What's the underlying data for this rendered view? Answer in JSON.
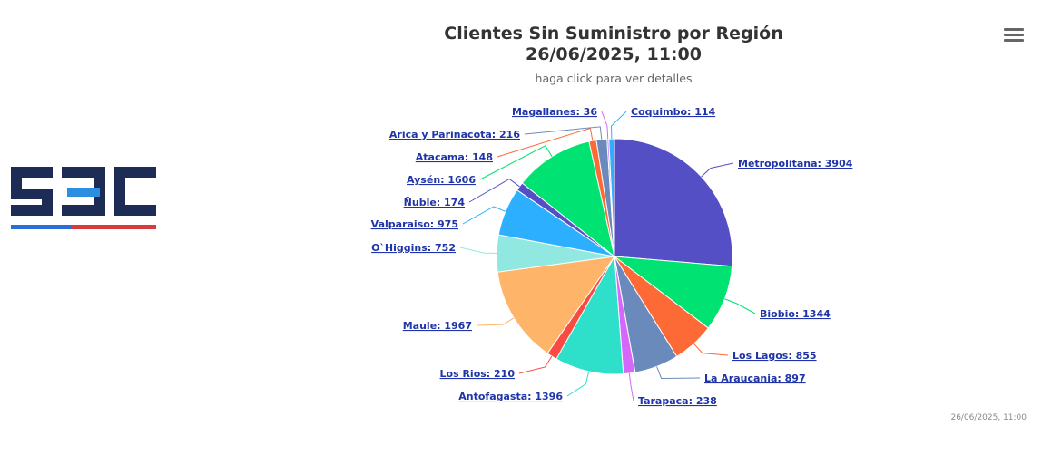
{
  "header": {
    "title_line1": "Clientes Sin Suministro por Región",
    "title_line2": "26/06/2025, 11:00",
    "subtitle": "haga click para ver detalles"
  },
  "logo": {
    "text": "SEC",
    "colors": {
      "navy": "#1c2c54",
      "blue": "#2a6fd6",
      "red": "#d93a3a"
    }
  },
  "menu": {
    "icon": "hamburger-menu-icon"
  },
  "footer": {
    "timestamp": "26/06/2025, 11:00"
  },
  "chart_data": {
    "type": "pie",
    "title": "Clientes Sin Suministro por Región 26/06/2025, 11:00",
    "subtitle": "haga click para ver detalles",
    "slices": [
      {
        "label": "Metropolitana",
        "value": 3904,
        "color": "#544fc5"
      },
      {
        "label": "Biobio",
        "value": 1344,
        "color": "#00e272"
      },
      {
        "label": "Los Lagos",
        "value": 855,
        "color": "#fe6a35"
      },
      {
        "label": "La Araucania",
        "value": 897,
        "color": "#6b8abc"
      },
      {
        "label": "Tarapaca",
        "value": 238,
        "color": "#d568fb"
      },
      {
        "label": "Antofagasta",
        "value": 1396,
        "color": "#2ee0ca"
      },
      {
        "label": "Los Rios",
        "value": 210,
        "color": "#fa4b42"
      },
      {
        "label": "Maule",
        "value": 1967,
        "color": "#feb56a"
      },
      {
        "label": "O`Higgins",
        "value": 752,
        "color": "#91e8e1"
      },
      {
        "label": "Valparaiso",
        "value": 975,
        "color": "#2caffe"
      },
      {
        "label": "Ñuble",
        "value": 174,
        "color": "#544fc5"
      },
      {
        "label": "Aysén",
        "value": 1606,
        "color": "#00e272"
      },
      {
        "label": "Atacama",
        "value": 148,
        "color": "#fe6a35"
      },
      {
        "label": "Arica y Parinacota",
        "value": 216,
        "color": "#6b8abc"
      },
      {
        "label": "Magallanes",
        "value": 36,
        "color": "#d568fb"
      },
      {
        "label": "Coquimbo",
        "value": 114,
        "color": "#2caffe"
      }
    ],
    "label_color": "#1f34a8"
  }
}
